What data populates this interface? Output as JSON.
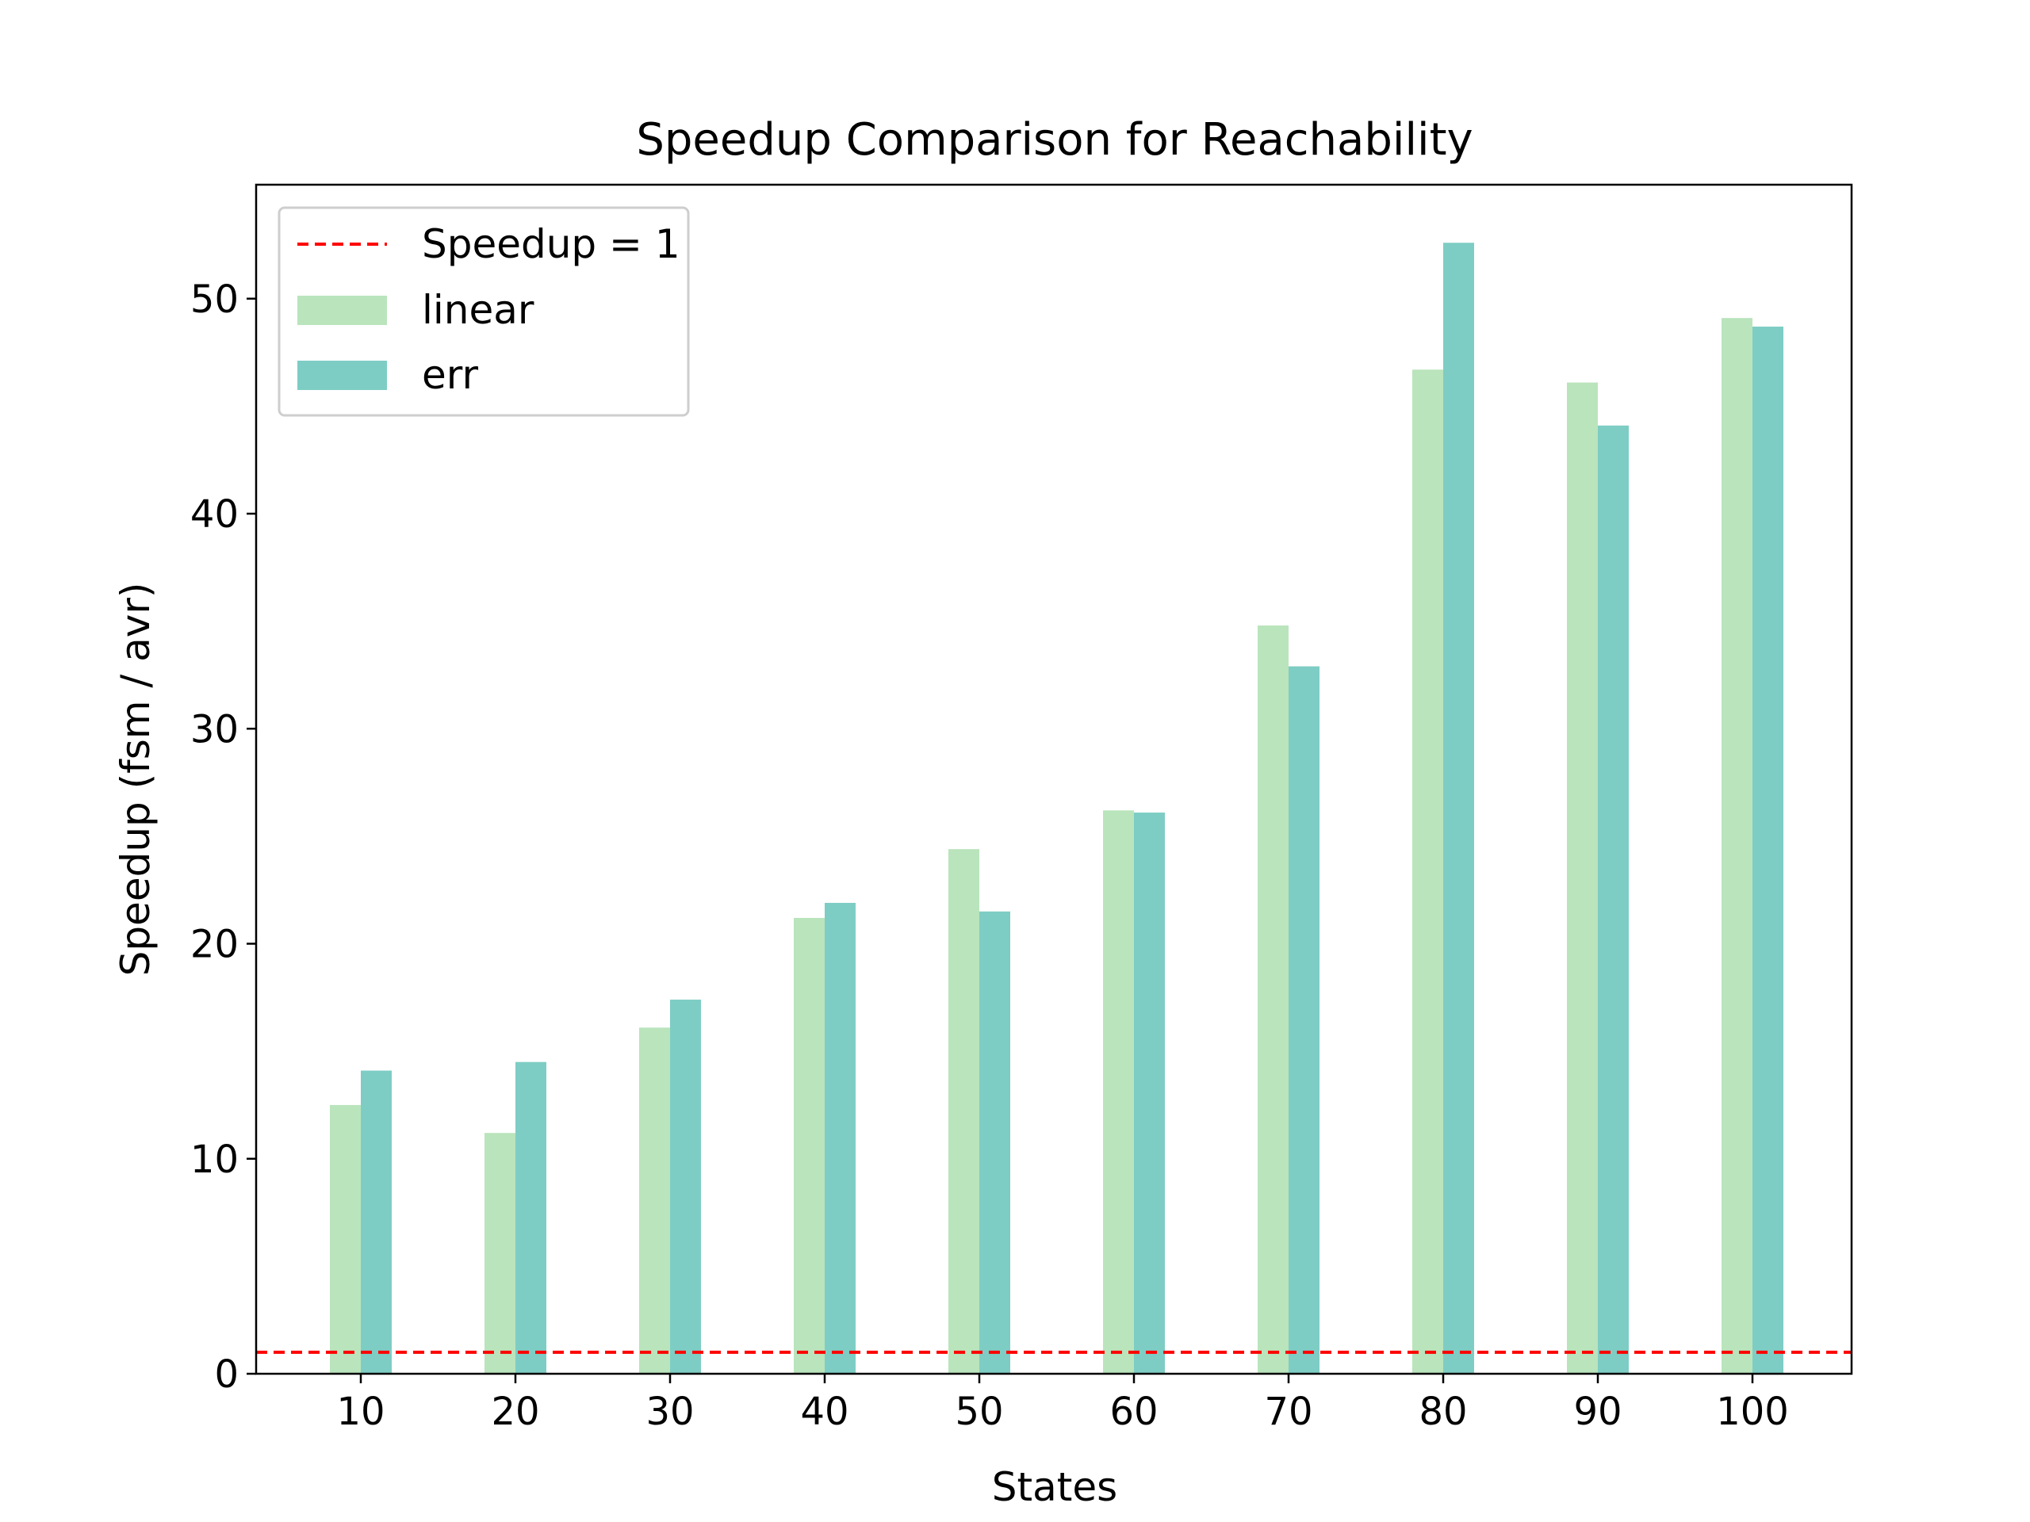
{
  "chart_data": {
    "type": "bar",
    "title": "Speedup Comparison for Reachability",
    "xlabel": "States",
    "ylabel": "Speedup (fsm / avr)",
    "categories": [
      "10",
      "20",
      "30",
      "40",
      "50",
      "60",
      "70",
      "80",
      "90",
      "100"
    ],
    "series": [
      {
        "name": "linear",
        "color": "#bae4bc",
        "values": [
          12.5,
          11.2,
          16.1,
          21.2,
          24.4,
          26.2,
          34.8,
          46.7,
          46.1,
          49.1
        ]
      },
      {
        "name": "err",
        "color": "#7ecdc4",
        "values": [
          14.1,
          14.5,
          17.4,
          21.9,
          21.5,
          26.1,
          32.9,
          52.6,
          44.1,
          48.7
        ]
      }
    ],
    "reference_line": {
      "name": "Speedup = 1",
      "value": 1,
      "color": "#ff0000",
      "style": "dashed"
    },
    "ylim": [
      0,
      55.3
    ],
    "yticks": [
      0,
      10,
      20,
      30,
      40,
      50
    ],
    "grid": false,
    "legend_position": "top-left"
  }
}
